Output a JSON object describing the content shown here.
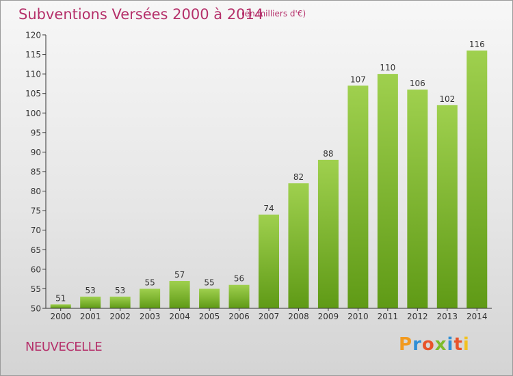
{
  "title": "Subventions Versées 2000 à 2014",
  "subtitle": "(en milliers d'€)",
  "location": "NEUVECELLE",
  "logo": "Proxiti",
  "colors": {
    "title": "#b5306a",
    "bar_top": "#9fd04e",
    "bar_bottom": "#5f9a16",
    "axis": "#333333"
  },
  "chart_data": {
    "type": "bar",
    "categories": [
      "2000",
      "2001",
      "2002",
      "2003",
      "2004",
      "2005",
      "2006",
      "2007",
      "2008",
      "2009",
      "2010",
      "2011",
      "2012",
      "2013",
      "2014"
    ],
    "values": [
      51,
      53,
      53,
      55,
      57,
      55,
      56,
      74,
      82,
      88,
      107,
      110,
      106,
      102,
      116
    ],
    "data_labels": [
      "51",
      "53",
      "53",
      "55",
      "57",
      "55",
      "56",
      "74",
      "82",
      "88",
      "107",
      "110",
      "106",
      "102",
      "116"
    ],
    "ylim": [
      50,
      120
    ],
    "yticks": [
      50,
      55,
      60,
      65,
      70,
      75,
      80,
      85,
      90,
      95,
      100,
      105,
      110,
      115,
      120
    ],
    "ytick_labels": [
      "50",
      "55",
      "60",
      "65",
      "70",
      "75",
      "80",
      "85",
      "90",
      "95",
      "100",
      "105",
      "110",
      "115",
      "120"
    ],
    "grid": false,
    "legend": "none"
  }
}
